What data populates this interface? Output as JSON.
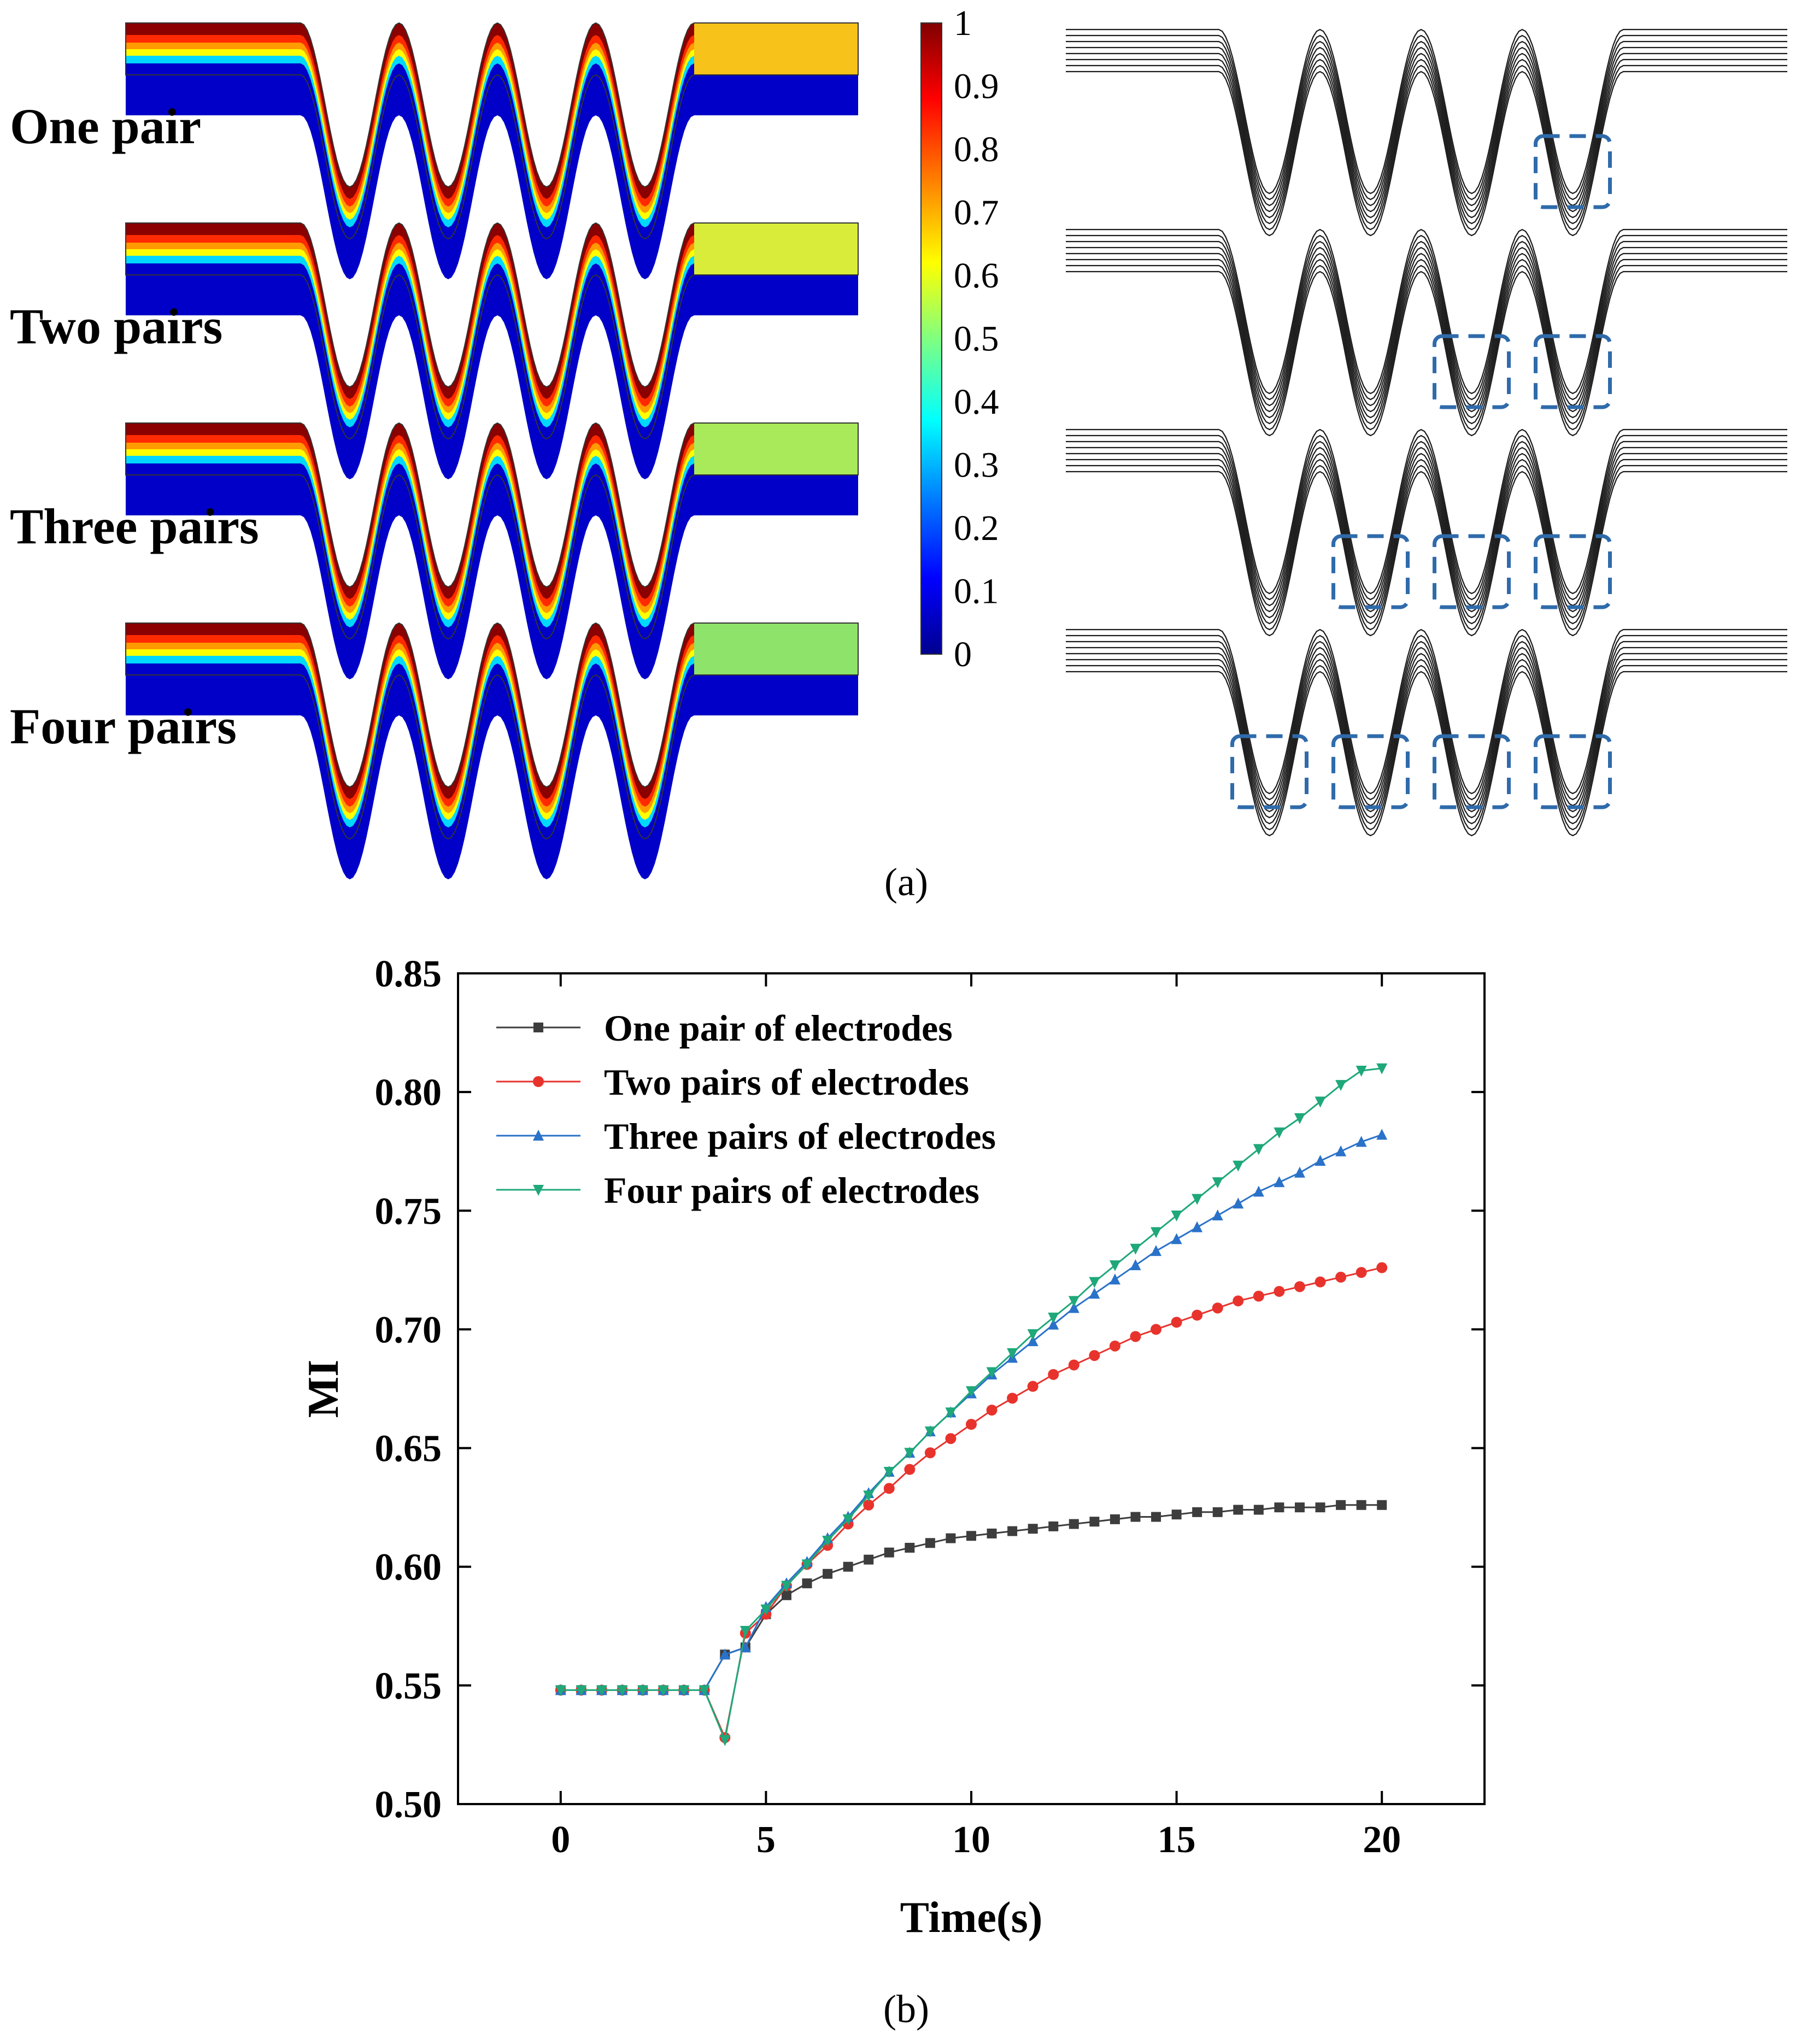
{
  "panel_a": {
    "caption": "(a)",
    "rows": [
      {
        "label": "One pair",
        "outlet_color": "#f7c21a",
        "vortex_troughs": [
          4
        ]
      },
      {
        "label": "Two pairs",
        "outlet_color": "#d9ec3a",
        "vortex_troughs": [
          3,
          4
        ]
      },
      {
        "label": "Three pairs",
        "outlet_color": "#a8ea5a",
        "vortex_troughs": [
          2,
          3,
          4
        ]
      },
      {
        "label": "Four pairs",
        "outlet_color": "#8ee36a",
        "vortex_troughs": [
          1,
          2,
          3,
          4
        ]
      }
    ],
    "colorbar": {
      "ticks": [
        "1",
        "0.9",
        "0.8",
        "0.7",
        "0.6",
        "0.5",
        "0.4",
        "0.3",
        "0.2",
        "0.1",
        "0"
      ],
      "colors": [
        "#00008f",
        "#0000ff",
        "#0080ff",
        "#00ffff",
        "#80ff80",
        "#ffff00",
        "#ff8000",
        "#ff0000",
        "#800000"
      ]
    },
    "vortex_box_color": "#2f6bab"
  },
  "panel_b": {
    "caption": "(b)",
    "chart_data": {
      "type": "line",
      "title": "",
      "xlabel": "Time(s)",
      "ylabel": "MI",
      "xlim": [
        -2.5,
        22.5
      ],
      "ylim": [
        0.5,
        0.85
      ],
      "xticks": [
        "0",
        "5",
        "10",
        "15",
        "20"
      ],
      "yticks": [
        "0.50",
        "0.55",
        "0.60",
        "0.65",
        "0.70",
        "0.75",
        "0.80",
        "0.85"
      ],
      "legend_position": "top-left",
      "x": [
        0,
        0.5,
        1,
        1.5,
        2,
        2.5,
        3,
        3.5,
        4,
        4.5,
        5,
        5.5,
        6,
        6.5,
        7,
        7.5,
        8,
        8.5,
        9,
        9.5,
        10,
        10.5,
        11,
        11.5,
        12,
        12.5,
        13,
        13.5,
        14,
        14.5,
        15,
        15.5,
        16,
        16.5,
        17,
        17.5,
        18,
        18.5,
        19,
        19.5,
        20
      ],
      "series": [
        {
          "name": "One pair of electrodes",
          "color": "#3d3d3d",
          "marker": "square",
          "values": [
            0.548,
            0.548,
            0.548,
            0.548,
            0.548,
            0.548,
            0.548,
            0.548,
            0.563,
            0.566,
            0.58,
            0.588,
            0.593,
            0.597,
            0.6,
            0.603,
            0.606,
            0.608,
            0.61,
            0.612,
            0.613,
            0.614,
            0.615,
            0.616,
            0.617,
            0.618,
            0.619,
            0.62,
            0.621,
            0.621,
            0.622,
            0.623,
            0.623,
            0.624,
            0.624,
            0.625,
            0.625,
            0.625,
            0.626,
            0.626,
            0.626
          ]
        },
        {
          "name": "Two pairs of electrodes",
          "color": "#e8332d",
          "marker": "circle",
          "values": [
            0.548,
            0.548,
            0.548,
            0.548,
            0.548,
            0.548,
            0.548,
            0.548,
            0.528,
            0.572,
            0.58,
            0.592,
            0.601,
            0.609,
            0.618,
            0.626,
            0.633,
            0.641,
            0.648,
            0.654,
            0.66,
            0.666,
            0.671,
            0.676,
            0.681,
            0.685,
            0.689,
            0.693,
            0.697,
            0.7,
            0.703,
            0.706,
            0.709,
            0.712,
            0.714,
            0.716,
            0.718,
            0.72,
            0.722,
            0.724,
            0.726
          ]
        },
        {
          "name": "Three pairs of electrodes",
          "color": "#2a72c9",
          "marker": "triangle-up",
          "values": [
            0.548,
            0.548,
            0.548,
            0.548,
            0.548,
            0.548,
            0.548,
            0.548,
            0.563,
            0.566,
            0.583,
            0.593,
            0.602,
            0.612,
            0.621,
            0.631,
            0.64,
            0.648,
            0.657,
            0.665,
            0.673,
            0.681,
            0.688,
            0.695,
            0.702,
            0.709,
            0.715,
            0.721,
            0.727,
            0.733,
            0.738,
            0.743,
            0.748,
            0.753,
            0.758,
            0.762,
            0.766,
            0.771,
            0.775,
            0.779,
            0.782
          ]
        },
        {
          "name": "Four pairs of electrodes",
          "color": "#1fa87a",
          "marker": "triangle-down",
          "values": [
            0.548,
            0.548,
            0.548,
            0.548,
            0.548,
            0.548,
            0.548,
            0.548,
            0.527,
            0.573,
            0.582,
            0.592,
            0.601,
            0.611,
            0.62,
            0.63,
            0.64,
            0.648,
            0.657,
            0.665,
            0.674,
            0.682,
            0.69,
            0.698,
            0.705,
            0.712,
            0.72,
            0.727,
            0.734,
            0.741,
            0.748,
            0.755,
            0.762,
            0.769,
            0.776,
            0.783,
            0.789,
            0.796,
            0.803,
            0.809,
            0.81
          ]
        }
      ]
    }
  }
}
